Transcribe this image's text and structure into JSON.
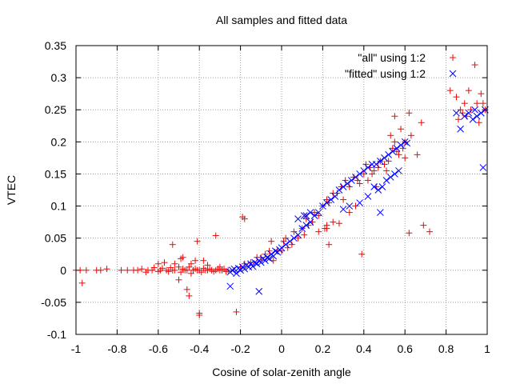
{
  "chart_data": {
    "type": "scatter",
    "title": "All samples and fitted data",
    "xlabel": "Cosine of solar-zenith angle",
    "ylabel": "VTEC",
    "xlim": [
      -1,
      1
    ],
    "ylim": [
      -0.1,
      0.35
    ],
    "x_ticks": [
      "-1",
      "-0.8",
      "-0.6",
      "-0.4",
      "-0.2",
      "0",
      "0.2",
      "0.4",
      "0.6",
      "0.8",
      "1"
    ],
    "y_ticks": [
      "-0.1",
      "-0.05",
      "0",
      "0.05",
      "0.1",
      "0.15",
      "0.2",
      "0.25",
      "0.3",
      "0.35"
    ],
    "grid": true,
    "legend_position": "top-right",
    "series": [
      {
        "name": "\"all\" using 1:2",
        "marker": "plus",
        "color": "#ff0000",
        "points": [
          [
            -1.0,
            0.0
          ],
          [
            -0.98,
            0.0
          ],
          [
            -0.97,
            -0.02
          ],
          [
            -0.95,
            0.0
          ],
          [
            -0.9,
            0.0
          ],
          [
            -0.88,
            0.0
          ],
          [
            -0.85,
            0.002
          ],
          [
            -0.78,
            0.0
          ],
          [
            -0.75,
            0.0
          ],
          [
            -0.72,
            0.0
          ],
          [
            -0.7,
            0.0
          ],
          [
            -0.68,
            0.002
          ],
          [
            -0.66,
            -0.003
          ],
          [
            -0.65,
            0.0
          ],
          [
            -0.63,
            0.0
          ],
          [
            -0.62,
            0.004
          ],
          [
            -0.6,
            -0.002
          ],
          [
            -0.59,
            0.0
          ],
          [
            -0.58,
            0.003
          ],
          [
            -0.56,
            0.0
          ],
          [
            -0.55,
            -0.002
          ],
          [
            -0.54,
            0.004
          ],
          [
            -0.53,
            0.0
          ],
          [
            -0.52,
            0.0
          ],
          [
            -0.5,
            0.005
          ],
          [
            -0.49,
            -0.003
          ],
          [
            -0.48,
            0.002
          ],
          [
            -0.47,
            0.0
          ],
          [
            -0.46,
            0.0
          ],
          [
            -0.45,
            0.005
          ],
          [
            -0.44,
            -0.005
          ],
          [
            -0.43,
            0.0
          ],
          [
            -0.42,
            0.002
          ],
          [
            -0.41,
            0.0
          ],
          [
            -0.4,
            0.0
          ],
          [
            -0.39,
            -0.003
          ],
          [
            -0.38,
            0.003
          ],
          [
            -0.37,
            0.0
          ],
          [
            -0.36,
            0.0
          ],
          [
            -0.35,
            0.002
          ],
          [
            -0.34,
            0.0
          ],
          [
            -0.33,
            -0.002
          ],
          [
            -0.32,
            0.0
          ],
          [
            -0.31,
            0.002
          ],
          [
            -0.3,
            0.0
          ],
          [
            -0.29,
            0.0
          ],
          [
            -0.28,
            0.002
          ],
          [
            -0.27,
            -0.002
          ],
          [
            -0.26,
            0.0
          ],
          [
            -0.6,
            0.01
          ],
          [
            -0.57,
            0.012
          ],
          [
            -0.52,
            0.01
          ],
          [
            -0.5,
            -0.015
          ],
          [
            -0.48,
            0.02
          ],
          [
            -0.46,
            -0.03
          ],
          [
            -0.45,
            -0.04
          ],
          [
            -0.44,
            0.01
          ],
          [
            -0.42,
            0.015
          ],
          [
            -0.4,
            -0.07
          ],
          [
            -0.4,
            -0.067
          ],
          [
            -0.38,
            0.015
          ],
          [
            -0.32,
            0.054
          ],
          [
            -0.41,
            0.045
          ],
          [
            -0.53,
            0.04
          ],
          [
            -0.49,
            0.018
          ],
          [
            -0.36,
            0.008
          ],
          [
            -0.3,
            0.005
          ],
          [
            -0.22,
            -0.065
          ],
          [
            -0.2,
            0.005
          ],
          [
            -0.18,
            0.01
          ],
          [
            -0.15,
            0.012
          ],
          [
            -0.12,
            0.02
          ],
          [
            -0.1,
            0.02
          ],
          [
            -0.08,
            0.025
          ],
          [
            -0.06,
            0.03
          ],
          [
            -0.05,
            0.045
          ],
          [
            -0.04,
            0.015
          ],
          [
            -0.02,
            0.03
          ],
          [
            0.0,
            0.03
          ],
          [
            0.01,
            0.045
          ],
          [
            0.02,
            0.05
          ],
          [
            0.03,
            0.035
          ],
          [
            0.05,
            0.04
          ],
          [
            0.06,
            0.06
          ],
          [
            0.08,
            0.05
          ],
          [
            0.1,
            0.065
          ],
          [
            0.11,
            0.055
          ],
          [
            0.12,
            0.08
          ],
          [
            0.13,
            0.07
          ],
          [
            0.15,
            0.075
          ],
          [
            0.16,
            0.09
          ],
          [
            0.18,
            0.085
          ],
          [
            0.2,
            0.1
          ],
          [
            0.22,
            0.11
          ],
          [
            0.23,
            0.105
          ],
          [
            0.25,
            0.12
          ],
          [
            0.27,
            0.12
          ],
          [
            0.29,
            0.13
          ],
          [
            0.3,
            0.11
          ],
          [
            0.31,
            0.14
          ],
          [
            0.33,
            0.13
          ],
          [
            0.35,
            0.145
          ],
          [
            0.37,
            0.14
          ],
          [
            0.38,
            0.135
          ],
          [
            0.4,
            0.15
          ],
          [
            0.41,
            0.165
          ],
          [
            0.42,
            0.14
          ],
          [
            0.43,
            0.16
          ],
          [
            0.44,
            0.15
          ],
          [
            0.45,
            0.155
          ],
          [
            0.46,
            0.13
          ],
          [
            0.47,
            0.16
          ],
          [
            0.48,
            0.17
          ],
          [
            0.5,
            0.165
          ],
          [
            0.51,
            0.155
          ],
          [
            0.52,
            0.17
          ],
          [
            0.53,
            0.21
          ],
          [
            0.54,
            0.19
          ],
          [
            0.55,
            0.2
          ],
          [
            0.56,
            0.185
          ],
          [
            0.57,
            0.18
          ],
          [
            0.58,
            0.22
          ],
          [
            0.6,
            0.2
          ],
          [
            0.62,
            0.245
          ],
          [
            0.63,
            0.21
          ],
          [
            0.66,
            0.18
          ],
          [
            0.68,
            0.23
          ],
          [
            0.72,
            0.06
          ],
          [
            0.69,
            0.07
          ],
          [
            0.62,
            0.058
          ],
          [
            0.39,
            0.025
          ],
          [
            0.23,
            0.04
          ],
          [
            0.22,
            0.065
          ],
          [
            0.25,
            0.075
          ],
          [
            0.28,
            0.073
          ],
          [
            0.33,
            0.09
          ],
          [
            0.36,
            0.1
          ],
          [
            0.55,
            0.24
          ],
          [
            0.59,
            0.19
          ],
          [
            0.6,
            0.175
          ],
          [
            0.22,
            0.07
          ],
          [
            0.21,
            0.065
          ],
          [
            0.18,
            0.06
          ],
          [
            -0.19,
            0.083
          ],
          [
            -0.18,
            0.08
          ],
          [
            0.82,
            0.28
          ],
          [
            0.85,
            0.27
          ],
          [
            0.87,
            0.25
          ],
          [
            0.89,
            0.26
          ],
          [
            0.9,
            0.24
          ],
          [
            0.92,
            0.25
          ],
          [
            0.94,
            0.32
          ],
          [
            0.95,
            0.26
          ],
          [
            0.96,
            0.23
          ],
          [
            0.98,
            0.26
          ],
          [
            0.99,
            0.25
          ],
          [
            0.86,
            0.235
          ],
          [
            0.91,
            0.28
          ],
          [
            0.97,
            0.275
          ],
          [
            0.88,
            0.245
          ]
        ]
      },
      {
        "name": "\"fitted\" using 1:2",
        "marker": "cross",
        "color": "#0000ff",
        "points": [
          [
            -0.25,
            -0.003
          ],
          [
            -0.24,
            0.0
          ],
          [
            -0.23,
            0.002
          ],
          [
            -0.22,
            -0.005
          ],
          [
            -0.21,
            0.003
          ],
          [
            -0.2,
            0.0
          ],
          [
            -0.19,
            0.005
          ],
          [
            -0.18,
            0.002
          ],
          [
            -0.17,
            0.008
          ],
          [
            -0.16,
            0.005
          ],
          [
            -0.15,
            0.01
          ],
          [
            -0.14,
            0.006
          ],
          [
            -0.13,
            0.012
          ],
          [
            -0.12,
            0.01
          ],
          [
            -0.11,
            0.015
          ],
          [
            -0.1,
            0.012
          ],
          [
            -0.09,
            0.018
          ],
          [
            -0.08,
            0.015
          ],
          [
            -0.07,
            0.02
          ],
          [
            -0.06,
            0.018
          ],
          [
            -0.05,
            0.025
          ],
          [
            -0.04,
            0.022
          ],
          [
            -0.03,
            0.03
          ],
          [
            -0.02,
            0.028
          ],
          [
            -0.01,
            0.032
          ],
          [
            0.0,
            0.035
          ],
          [
            0.02,
            0.04
          ],
          [
            0.04,
            0.045
          ],
          [
            0.06,
            0.05
          ],
          [
            0.08,
            0.055
          ],
          [
            0.1,
            0.065
          ],
          [
            0.12,
            0.07
          ],
          [
            0.14,
            0.075
          ],
          [
            0.16,
            0.085
          ],
          [
            0.18,
            0.09
          ],
          [
            0.2,
            0.1
          ],
          [
            0.22,
            0.105
          ],
          [
            0.24,
            0.11
          ],
          [
            0.26,
            0.115
          ],
          [
            0.28,
            0.125
          ],
          [
            0.3,
            0.13
          ],
          [
            0.32,
            0.135
          ],
          [
            0.34,
            0.14
          ],
          [
            0.36,
            0.145
          ],
          [
            0.38,
            0.15
          ],
          [
            0.4,
            0.155
          ],
          [
            0.42,
            0.16
          ],
          [
            0.44,
            0.165
          ],
          [
            0.46,
            0.165
          ],
          [
            0.48,
            0.17
          ],
          [
            0.5,
            0.175
          ],
          [
            0.52,
            0.18
          ],
          [
            0.54,
            0.185
          ],
          [
            0.56,
            0.19
          ],
          [
            0.58,
            0.195
          ],
          [
            0.6,
            0.2
          ],
          [
            0.61,
            0.198
          ],
          [
            0.45,
            0.13
          ],
          [
            0.47,
            0.125
          ],
          [
            0.49,
            0.13
          ],
          [
            0.51,
            0.14
          ],
          [
            0.53,
            0.145
          ],
          [
            0.55,
            0.15
          ],
          [
            0.57,
            0.155
          ],
          [
            0.42,
            0.115
          ],
          [
            0.38,
            0.105
          ],
          [
            0.33,
            0.1
          ],
          [
            0.3,
            0.095
          ],
          [
            0.48,
            0.09
          ],
          [
            -0.25,
            -0.025
          ],
          [
            -0.11,
            -0.033
          ],
          [
            0.11,
            0.085
          ],
          [
            0.14,
            0.09
          ],
          [
            0.08,
            0.08
          ],
          [
            0.12,
            0.085
          ],
          [
            0.87,
            0.22
          ],
          [
            0.89,
            0.24
          ],
          [
            0.91,
            0.245
          ],
          [
            0.93,
            0.235
          ],
          [
            0.95,
            0.24
          ],
          [
            0.97,
            0.245
          ],
          [
            0.99,
            0.25
          ],
          [
            0.98,
            0.16
          ],
          [
            0.85,
            0.245
          ],
          [
            0.94,
            0.25
          ]
        ]
      }
    ]
  }
}
